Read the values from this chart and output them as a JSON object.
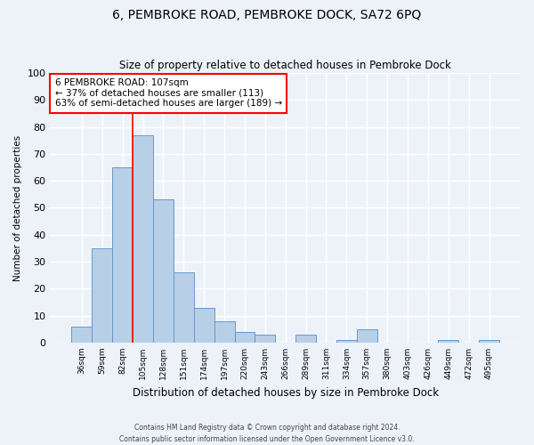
{
  "title": "6, PEMBROKE ROAD, PEMBROKE DOCK, SA72 6PQ",
  "subtitle": "Size of property relative to detached houses in Pembroke Dock",
  "xlabel": "Distribution of detached houses by size in Pembroke Dock",
  "ylabel": "Number of detached properties",
  "bar_color": "#b8cfe8",
  "bar_edge_color": "#6699cc",
  "categories": [
    "36sqm",
    "59sqm",
    "82sqm",
    "105sqm",
    "128sqm",
    "151sqm",
    "174sqm",
    "197sqm",
    "220sqm",
    "243sqm",
    "266sqm",
    "289sqm",
    "311sqm",
    "334sqm",
    "357sqm",
    "380sqm",
    "403sqm",
    "426sqm",
    "449sqm",
    "472sqm",
    "495sqm"
  ],
  "values": [
    6,
    35,
    65,
    77,
    53,
    26,
    13,
    8,
    4,
    3,
    0,
    3,
    0,
    1,
    5,
    0,
    0,
    0,
    1,
    0,
    1
  ],
  "ylim": [
    0,
    100
  ],
  "yticks": [
    0,
    10,
    20,
    30,
    40,
    50,
    60,
    70,
    80,
    90,
    100
  ],
  "property_label": "6 PEMBROKE ROAD: 107sqm",
  "annotation_line1": "← 37% of detached houses are smaller (113)",
  "annotation_line2": "63% of semi-detached houses are larger (189) →",
  "vline_x": 2.5,
  "background_color": "#edf2f9",
  "grid_color": "#ffffff",
  "footer_line1": "Contains HM Land Registry data © Crown copyright and database right 2024.",
  "footer_line2": "Contains public sector information licensed under the Open Government Licence v3.0."
}
